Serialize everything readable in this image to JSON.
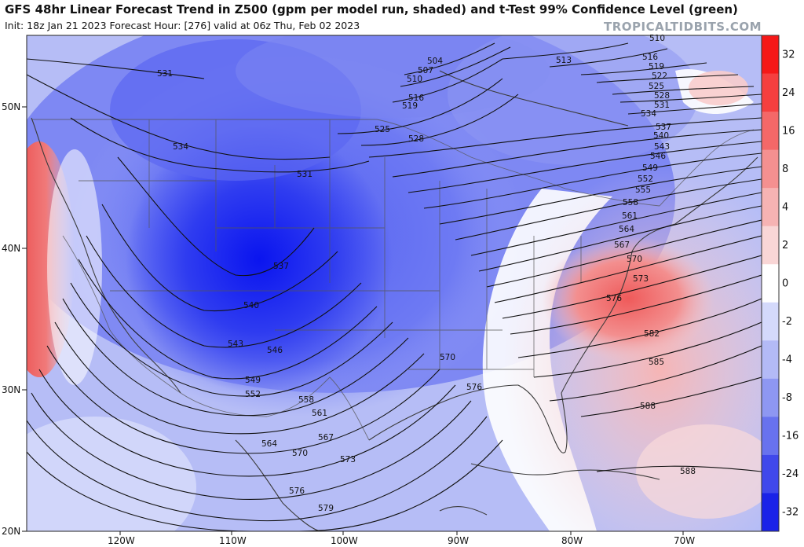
{
  "header": {
    "title": "GFS 48hr Linear Forecast Trend in Z500 (gpm per model run, shaded) and t-Test 99% Confidence Level (green)",
    "subtitle": "Init: 18z Jan 21 2023   Forecast Hour: [276]   valid at 06z Thu, Feb 02 2023",
    "watermark": "TROPICALTIDBITS.COM"
  },
  "map": {
    "region": "North America / CONUS",
    "lat_labels": [
      "50N",
      "40N",
      "30N",
      "20N"
    ],
    "lon_labels": [
      "120W",
      "110W",
      "100W",
      "90W",
      "80W",
      "70W"
    ],
    "contour_labels": [
      "531",
      "534",
      "531",
      "537",
      "540",
      "543",
      "546",
      "549",
      "552",
      "558",
      "561",
      "564",
      "567",
      "570",
      "573",
      "576",
      "579",
      "525",
      "528",
      "519",
      "516",
      "510",
      "507",
      "504",
      "513",
      "510",
      "516",
      "519",
      "522",
      "525",
      "528",
      "531",
      "534",
      "537",
      "540",
      "543",
      "546",
      "549",
      "552",
      "555",
      "558",
      "561",
      "564",
      "567",
      "570",
      "573",
      "576",
      "570",
      "576",
      "582",
      "585",
      "588",
      "588"
    ],
    "shading_colors": {
      "strong_negative": "#0a1ff0",
      "negative": "#4d5cf2",
      "weak_negative": "#a9b2f7",
      "neutral": "#ffffff",
      "weak_positive": "#f7c3c3",
      "positive": "#f28b8b",
      "strong_positive": "#ee3a3a"
    }
  },
  "colorbar": {
    "labels": [
      "32",
      "24",
      "16",
      "8",
      "4",
      "2",
      "0",
      "-2",
      "-4",
      "-8",
      "-16",
      "-24",
      "-32"
    ],
    "colors": [
      "#f51818",
      "#f53f3f",
      "#f46868",
      "#f49090",
      "#f6b3b3",
      "#f9d6d6",
      "#ffffff",
      "#d4d9fb",
      "#b3baf6",
      "#8e97f2",
      "#6872ee",
      "#4048eb",
      "#1a22e8"
    ]
  }
}
